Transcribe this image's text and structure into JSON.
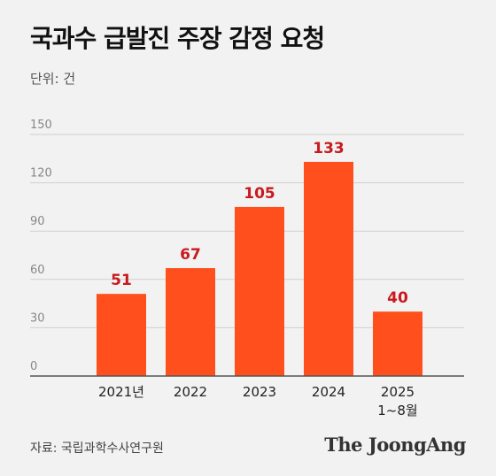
{
  "title": "국과수 급발진 주장 감정 요청",
  "unit": "단위: 건",
  "source": "자료: 국립과학수사연구원",
  "brand": "The JoongAng",
  "chart_data": {
    "type": "bar",
    "categories": [
      "2021년",
      "2022",
      "2023",
      "2024",
      "2025\n1~8월"
    ],
    "values": [
      51,
      67,
      105,
      133,
      40
    ],
    "value_labels": [
      "51",
      "67",
      "105",
      "133",
      "40"
    ],
    "ylim": [
      0,
      150
    ],
    "yticks": [
      0,
      30,
      60,
      90,
      120,
      150
    ],
    "grid": true,
    "bar_color": "#ff4f1c",
    "value_color": "#c8191e",
    "grid_color": "#cfcfcf",
    "axis_color": "#555555"
  }
}
